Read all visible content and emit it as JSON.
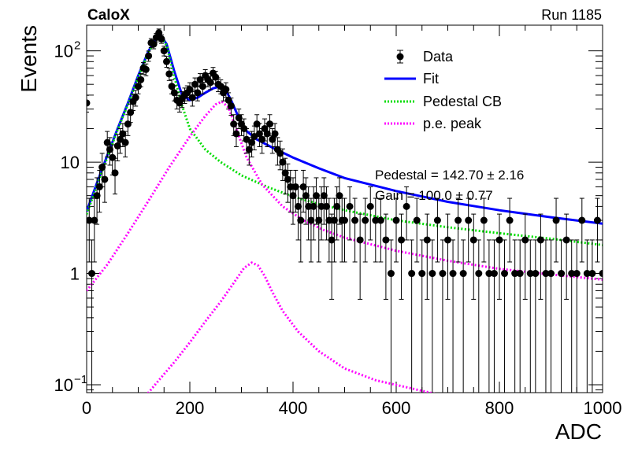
{
  "header": {
    "experiment": "CaloX",
    "run": "Run 1185"
  },
  "legend": {
    "items": [
      {
        "label": "Data",
        "style": "marker",
        "color": "#000000"
      },
      {
        "label": "Fit",
        "style": "solid",
        "color": "#0000ff"
      },
      {
        "label": "Pedestal CB",
        "style": "dotted",
        "color": "#00dd00"
      },
      {
        "label": "p.e. peak",
        "style": "dotted",
        "color": "#ff00ff"
      }
    ]
  },
  "fit_box": {
    "line1": "Pedestal = 142.70 ± 2.16",
    "line2": "Gain = 100.0 ± 0.77"
  },
  "chart_data": {
    "type": "scatter",
    "xlabel": "ADC",
    "ylabel": "Events",
    "xlim": [
      0,
      1000
    ],
    "ylim": [
      0.085,
      170
    ],
    "yscale": "log",
    "x_ticks": [
      0,
      200,
      400,
      600,
      800,
      1000
    ],
    "y_ticks": [
      {
        "value": 0.1,
        "label": "10",
        "sup": "−1"
      },
      {
        "value": 1,
        "label": "1",
        "sup": ""
      },
      {
        "value": 10,
        "label": "10",
        "sup": ""
      },
      {
        "value": 100,
        "label": "10",
        "sup": "2"
      }
    ],
    "grid": false,
    "legend_position": "top-right",
    "series": [
      {
        "name": "Data",
        "kind": "points",
        "color": "#000000",
        "x": [
          0,
          5,
          10,
          15,
          20,
          25,
          30,
          35,
          40,
          45,
          50,
          55,
          60,
          65,
          70,
          75,
          80,
          85,
          90,
          95,
          100,
          105,
          110,
          115,
          120,
          125,
          130,
          135,
          140,
          145,
          150,
          155,
          160,
          165,
          170,
          175,
          180,
          185,
          190,
          195,
          200,
          205,
          210,
          215,
          220,
          225,
          230,
          235,
          240,
          245,
          250,
          255,
          260,
          265,
          270,
          275,
          280,
          285,
          290,
          295,
          300,
          305,
          310,
          315,
          320,
          325,
          330,
          335,
          340,
          345,
          350,
          355,
          360,
          365,
          370,
          375,
          380,
          385,
          390,
          395,
          400,
          405,
          410,
          415,
          420,
          425,
          430,
          435,
          440,
          445,
          450,
          455,
          460,
          465,
          470,
          475,
          480,
          485,
          490,
          495,
          500,
          510,
          520,
          530,
          540,
          550,
          560,
          570,
          580,
          590,
          600,
          610,
          620,
          630,
          640,
          650,
          660,
          670,
          680,
          690,
          700,
          710,
          720,
          730,
          740,
          750,
          760,
          770,
          780,
          790,
          800,
          810,
          820,
          830,
          840,
          850,
          860,
          870,
          880,
          890,
          900,
          910,
          920,
          930,
          940,
          950,
          960,
          970,
          980,
          990,
          1000
        ],
        "y": [
          34,
          3,
          1,
          3,
          5,
          6,
          9,
          7,
          15,
          13,
          11,
          8,
          14,
          16,
          18,
          15,
          22,
          28,
          35,
          38,
          48,
          55,
          70,
          68,
          90,
          118,
          115,
          132,
          145,
          128,
          100,
          80,
          62,
          48,
          42,
          36,
          34,
          37,
          40,
          42,
          45,
          38,
          50,
          42,
          55,
          48,
          60,
          55,
          52,
          63,
          58,
          50,
          48,
          42,
          45,
          36,
          32,
          22,
          18,
          25,
          22,
          20,
          16,
          13,
          15,
          17,
          22,
          18,
          16,
          20,
          18,
          22,
          16,
          18,
          13,
          12,
          10,
          8,
          7,
          6,
          5,
          6,
          4,
          3,
          6,
          5,
          4,
          3,
          4,
          5,
          3,
          4,
          5,
          4,
          3,
          2,
          3,
          4,
          5,
          3,
          3,
          4,
          3,
          2,
          3,
          4,
          3,
          3,
          2,
          1,
          3,
          2,
          4,
          1,
          3,
          1,
          2,
          1,
          3,
          1,
          2,
          1,
          3,
          1,
          3,
          2,
          1,
          3,
          1,
          1,
          2,
          1,
          3,
          1,
          1,
          2,
          1,
          1,
          2,
          1,
          1,
          3,
          1,
          2,
          1,
          1,
          3,
          1,
          1,
          3,
          1
        ]
      },
      {
        "name": "Fit",
        "kind": "line",
        "style": "solid",
        "color": "#0000ff",
        "x": [
          0,
          20,
          40,
          60,
          80,
          100,
          120,
          135,
          145,
          155,
          170,
          185,
          200,
          215,
          230,
          245,
          260,
          270,
          280,
          295,
          310,
          330,
          360,
          400,
          450,
          500,
          600,
          700,
          800,
          900,
          1000
        ],
        "y": [
          3.6,
          6.5,
          11.5,
          20,
          34,
          60,
          100,
          128,
          135,
          115,
          65,
          40,
          36,
          38,
          42,
          46,
          48,
          44,
          36,
          25,
          19,
          16,
          13.5,
          11,
          8.8,
          7.2,
          5.5,
          4.4,
          3.7,
          3.2,
          2.8
        ]
      },
      {
        "name": "Pedestal CB",
        "kind": "line",
        "style": "dotted",
        "color": "#00dd00",
        "x": [
          0,
          20,
          40,
          60,
          80,
          100,
          120,
          135,
          145,
          155,
          170,
          185,
          200,
          230,
          260,
          300,
          350,
          400,
          450,
          500,
          600,
          700,
          800,
          900,
          1000
        ],
        "y": [
          3.4,
          6.2,
          11,
          19.5,
          33,
          58,
          98,
          126,
          133,
          112,
          58,
          32,
          20,
          13,
          10,
          7.6,
          6,
          4.9,
          4.2,
          3.7,
          3.0,
          2.6,
          2.3,
          2.05,
          1.8
        ]
      },
      {
        "name": "p.e. peak",
        "kind": "line",
        "style": "dotted",
        "color": "#ff00ff",
        "x": [
          0,
          40,
          80,
          120,
          160,
          200,
          230,
          250,
          262,
          275,
          290,
          310,
          340,
          380,
          420,
          460,
          500,
          600,
          700,
          800,
          900,
          1000
        ],
        "y": [
          0.7,
          1.2,
          2.3,
          4.5,
          9,
          17,
          26,
          33,
          35,
          31,
          20,
          11,
          6.3,
          4.0,
          3.0,
          2.45,
          2.1,
          1.6,
          1.3,
          1.1,
          0.98,
          0.88
        ]
      },
      {
        "name": "",
        "kind": "line",
        "style": "dotted",
        "color": "#ff00ff",
        "x": [
          110,
          140,
          170,
          200,
          230,
          260,
          285,
          305,
          320,
          332,
          345,
          360,
          380,
          410,
          450,
          500,
          560,
          620,
          680
        ],
        "y": [
          0.075,
          0.11,
          0.16,
          0.24,
          0.37,
          0.56,
          0.82,
          1.12,
          1.25,
          1.18,
          0.95,
          0.68,
          0.46,
          0.3,
          0.2,
          0.14,
          0.11,
          0.095,
          0.082
        ]
      }
    ]
  }
}
